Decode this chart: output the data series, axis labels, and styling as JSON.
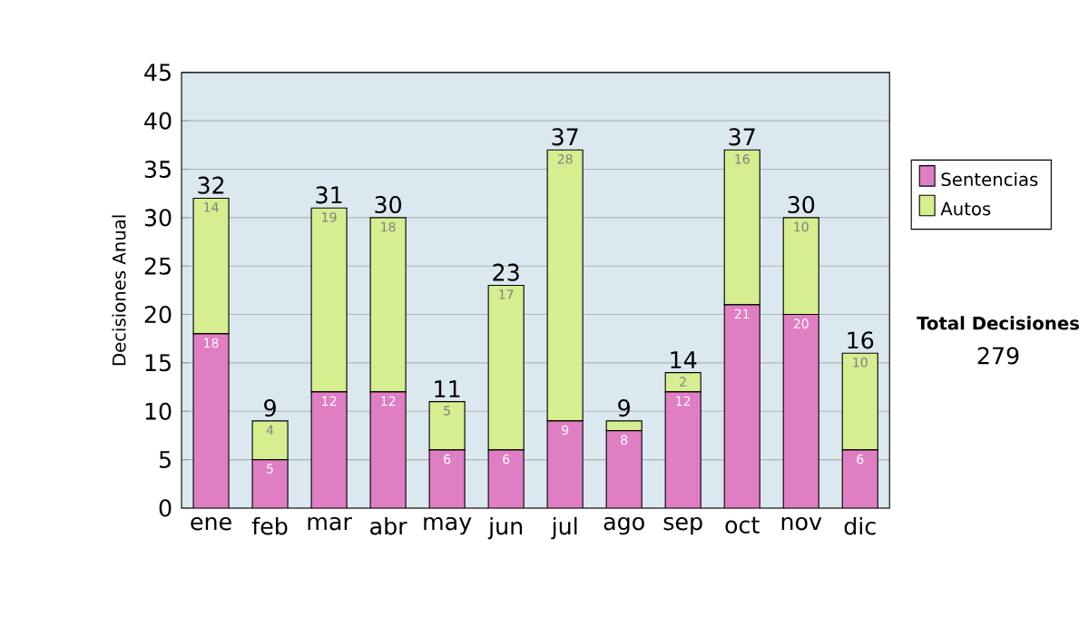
{
  "chart_data": {
    "type": "bar",
    "stacked": true,
    "ylabel": "Decisiones Anual",
    "categories": [
      "ene",
      "feb",
      "mar",
      "abr",
      "may",
      "jun",
      "jul",
      "ago",
      "sep",
      "oct",
      "nov",
      "dic"
    ],
    "series": [
      {
        "name": "Sentencias",
        "color": "#e07ec3",
        "values": [
          18,
          5,
          12,
          12,
          6,
          6,
          9,
          8,
          12,
          21,
          20,
          6
        ],
        "value_labels": [
          "18",
          "5",
          "12",
          "12",
          "6",
          "6",
          "9",
          "8",
          "12",
          "21",
          "20",
          "6"
        ]
      },
      {
        "name": "Autos",
        "color": "#d6ee90",
        "values": [
          14,
          4,
          19,
          18,
          5,
          17,
          28,
          1,
          2,
          16,
          10,
          10
        ],
        "value_labels": [
          "14",
          "4",
          "19",
          "18",
          "5",
          "17",
          "28",
          null,
          "2",
          "16",
          "10",
          "10"
        ]
      }
    ],
    "totals": [
      "32",
      "9",
      "31",
      "30",
      "11",
      "23",
      "37",
      "9",
      "14",
      "37",
      "30",
      "16"
    ],
    "ylim": [
      0,
      45
    ],
    "yticks": [
      0,
      5,
      10,
      15,
      20,
      25,
      30,
      35,
      40,
      45
    ],
    "grid": "y",
    "legend": "right",
    "annotations": [
      "Total Decisiones",
      "279"
    ]
  }
}
